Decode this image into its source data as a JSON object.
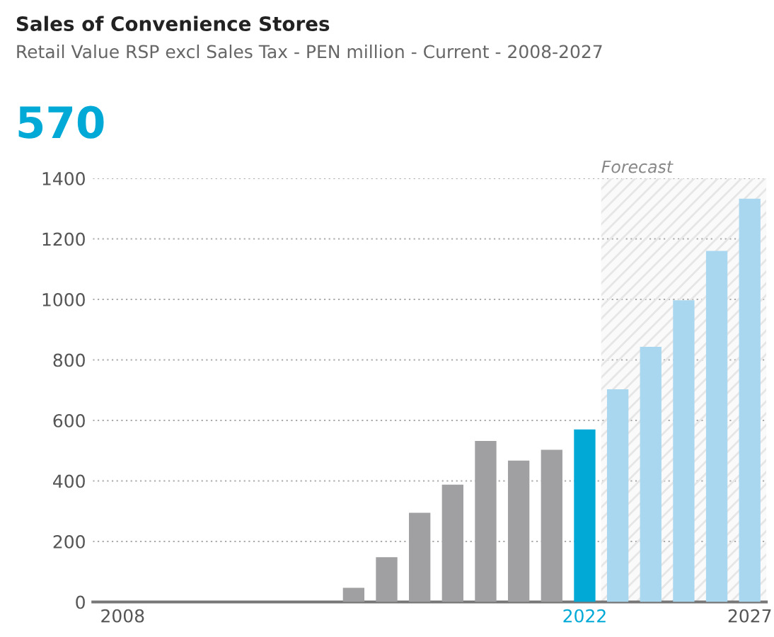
{
  "chart_data": {
    "type": "bar",
    "title": "Sales of Convenience Stores",
    "subtitle": "Retail Value RSP excl Sales Tax - PEN million - Current - 2008-2027",
    "annotations": [
      "570"
    ],
    "categories": [
      "2008",
      null,
      null,
      null,
      null,
      null,
      null,
      null,
      null,
      null,
      null,
      null,
      null,
      null,
      "2022",
      null,
      null,
      null,
      null,
      "2027"
    ],
    "values": [
      0,
      0,
      0,
      0,
      0,
      0,
      0,
      47,
      148,
      295,
      388,
      532,
      467,
      503,
      570,
      703,
      843,
      997,
      1160,
      1333
    ],
    "colors": [
      "#a0a0a2",
      "#a0a0a2",
      "#a0a0a2",
      "#a0a0a2",
      "#a0a0a2",
      "#a0a0a2",
      "#a0a0a2",
      "#a0a0a2",
      "#a0a0a2",
      "#a0a0a2",
      "#a0a0a2",
      "#a0a0a2",
      "#a0a0a2",
      "#a0a0a2",
      "#00a9d6",
      "#a9d7ef",
      "#a9d7ef",
      "#a9d7ef",
      "#a9d7ef",
      "#a9d7ef"
    ],
    "ylim": [
      0,
      1400
    ],
    "yticks": [
      0,
      200,
      400,
      600,
      800,
      1000,
      1200,
      1400
    ],
    "grid": "y",
    "bands": [
      {
        "axis": "x",
        "from": "2022",
        "to": "2027",
        "label": "Forecast",
        "color": "#e6e6e6"
      }
    ]
  }
}
